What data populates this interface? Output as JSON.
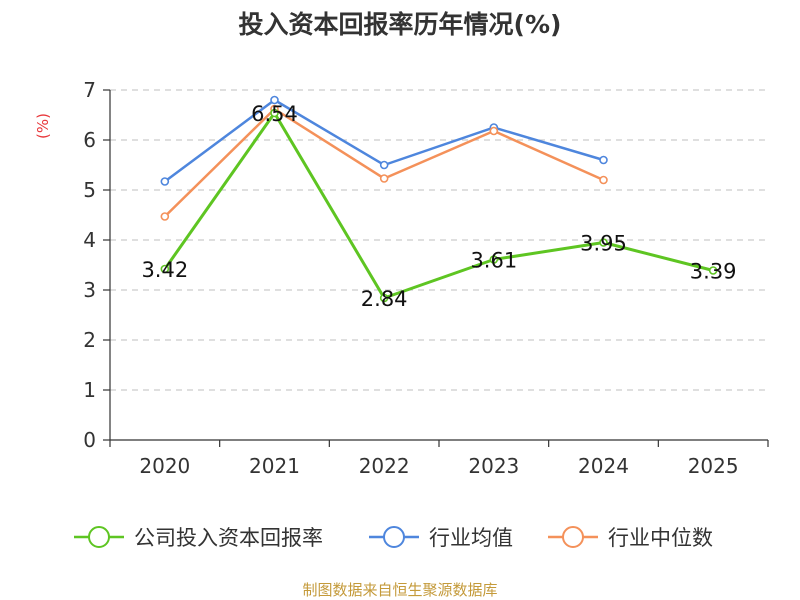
{
  "chart_data": {
    "type": "line",
    "title": "投入资本回报率历年情况(%)",
    "ylabel": "(%)",
    "xlabel": "",
    "ylim": [
      0,
      7
    ],
    "yticks": [
      0,
      1,
      2,
      3,
      4,
      5,
      6,
      7
    ],
    "grid": true,
    "legend_position": "bottom",
    "categories": [
      "2020",
      "2021",
      "2022",
      "2023",
      "2024",
      "2025"
    ],
    "series": [
      {
        "name": "公司投入资本回报率",
        "color": "#5ec522",
        "values": [
          3.42,
          6.54,
          2.84,
          3.61,
          3.95,
          3.39
        ],
        "labels": [
          "3.42",
          "6.54",
          "2.84",
          "3.61",
          "3.95",
          "3.39"
        ]
      },
      {
        "name": "行业均值",
        "color": "#4e86dd",
        "values": [
          5.17,
          6.8,
          5.5,
          6.25,
          5.6,
          null
        ]
      },
      {
        "name": "行业中位数",
        "color": "#f4915a",
        "values": [
          4.47,
          6.62,
          5.23,
          6.18,
          5.2,
          null
        ]
      }
    ],
    "source": "制图数据来自恒生聚源数据库"
  }
}
